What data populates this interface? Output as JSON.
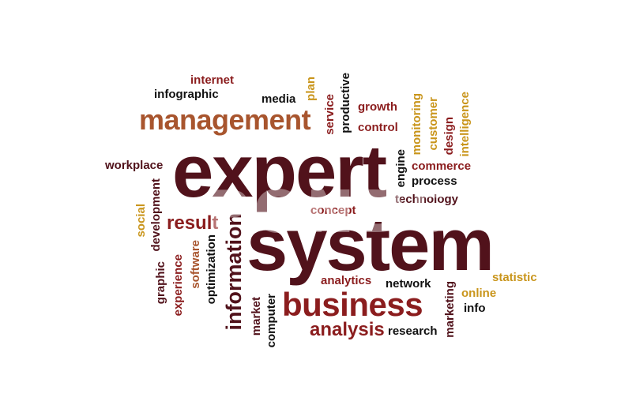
{
  "colors": {
    "dark": "#51121b",
    "red": "#8b1d1e",
    "brown": "#a8552e",
    "gold": "#c9951b",
    "text_black": "#111111"
  },
  "words": {
    "expert": "expert",
    "system": "system",
    "management": "management",
    "business": "business",
    "information": "information",
    "analysis": "analysis",
    "result": "result",
    "internet": "internet",
    "infographic": "infographic",
    "media": "media",
    "plan": "plan",
    "service": "service",
    "productive": "productive",
    "growth": "growth",
    "control": "control",
    "monitoring": "monitoring",
    "customer": "customer",
    "design": "design",
    "intelligence": "intelligence",
    "workplace": "workplace",
    "engine": "engine",
    "commerce": "commerce",
    "process": "process",
    "technology": "technology",
    "concept": "concept",
    "social": "social",
    "development": "development",
    "graphic": "graphic",
    "experience": "experience",
    "software": "software",
    "optimization": "optimization",
    "market": "market",
    "computer": "computer",
    "analytics": "analytics",
    "network": "network",
    "research": "research",
    "marketing": "marketing",
    "online": "online",
    "info": "info",
    "statistic": "statistic"
  },
  "watermark": "POND5"
}
